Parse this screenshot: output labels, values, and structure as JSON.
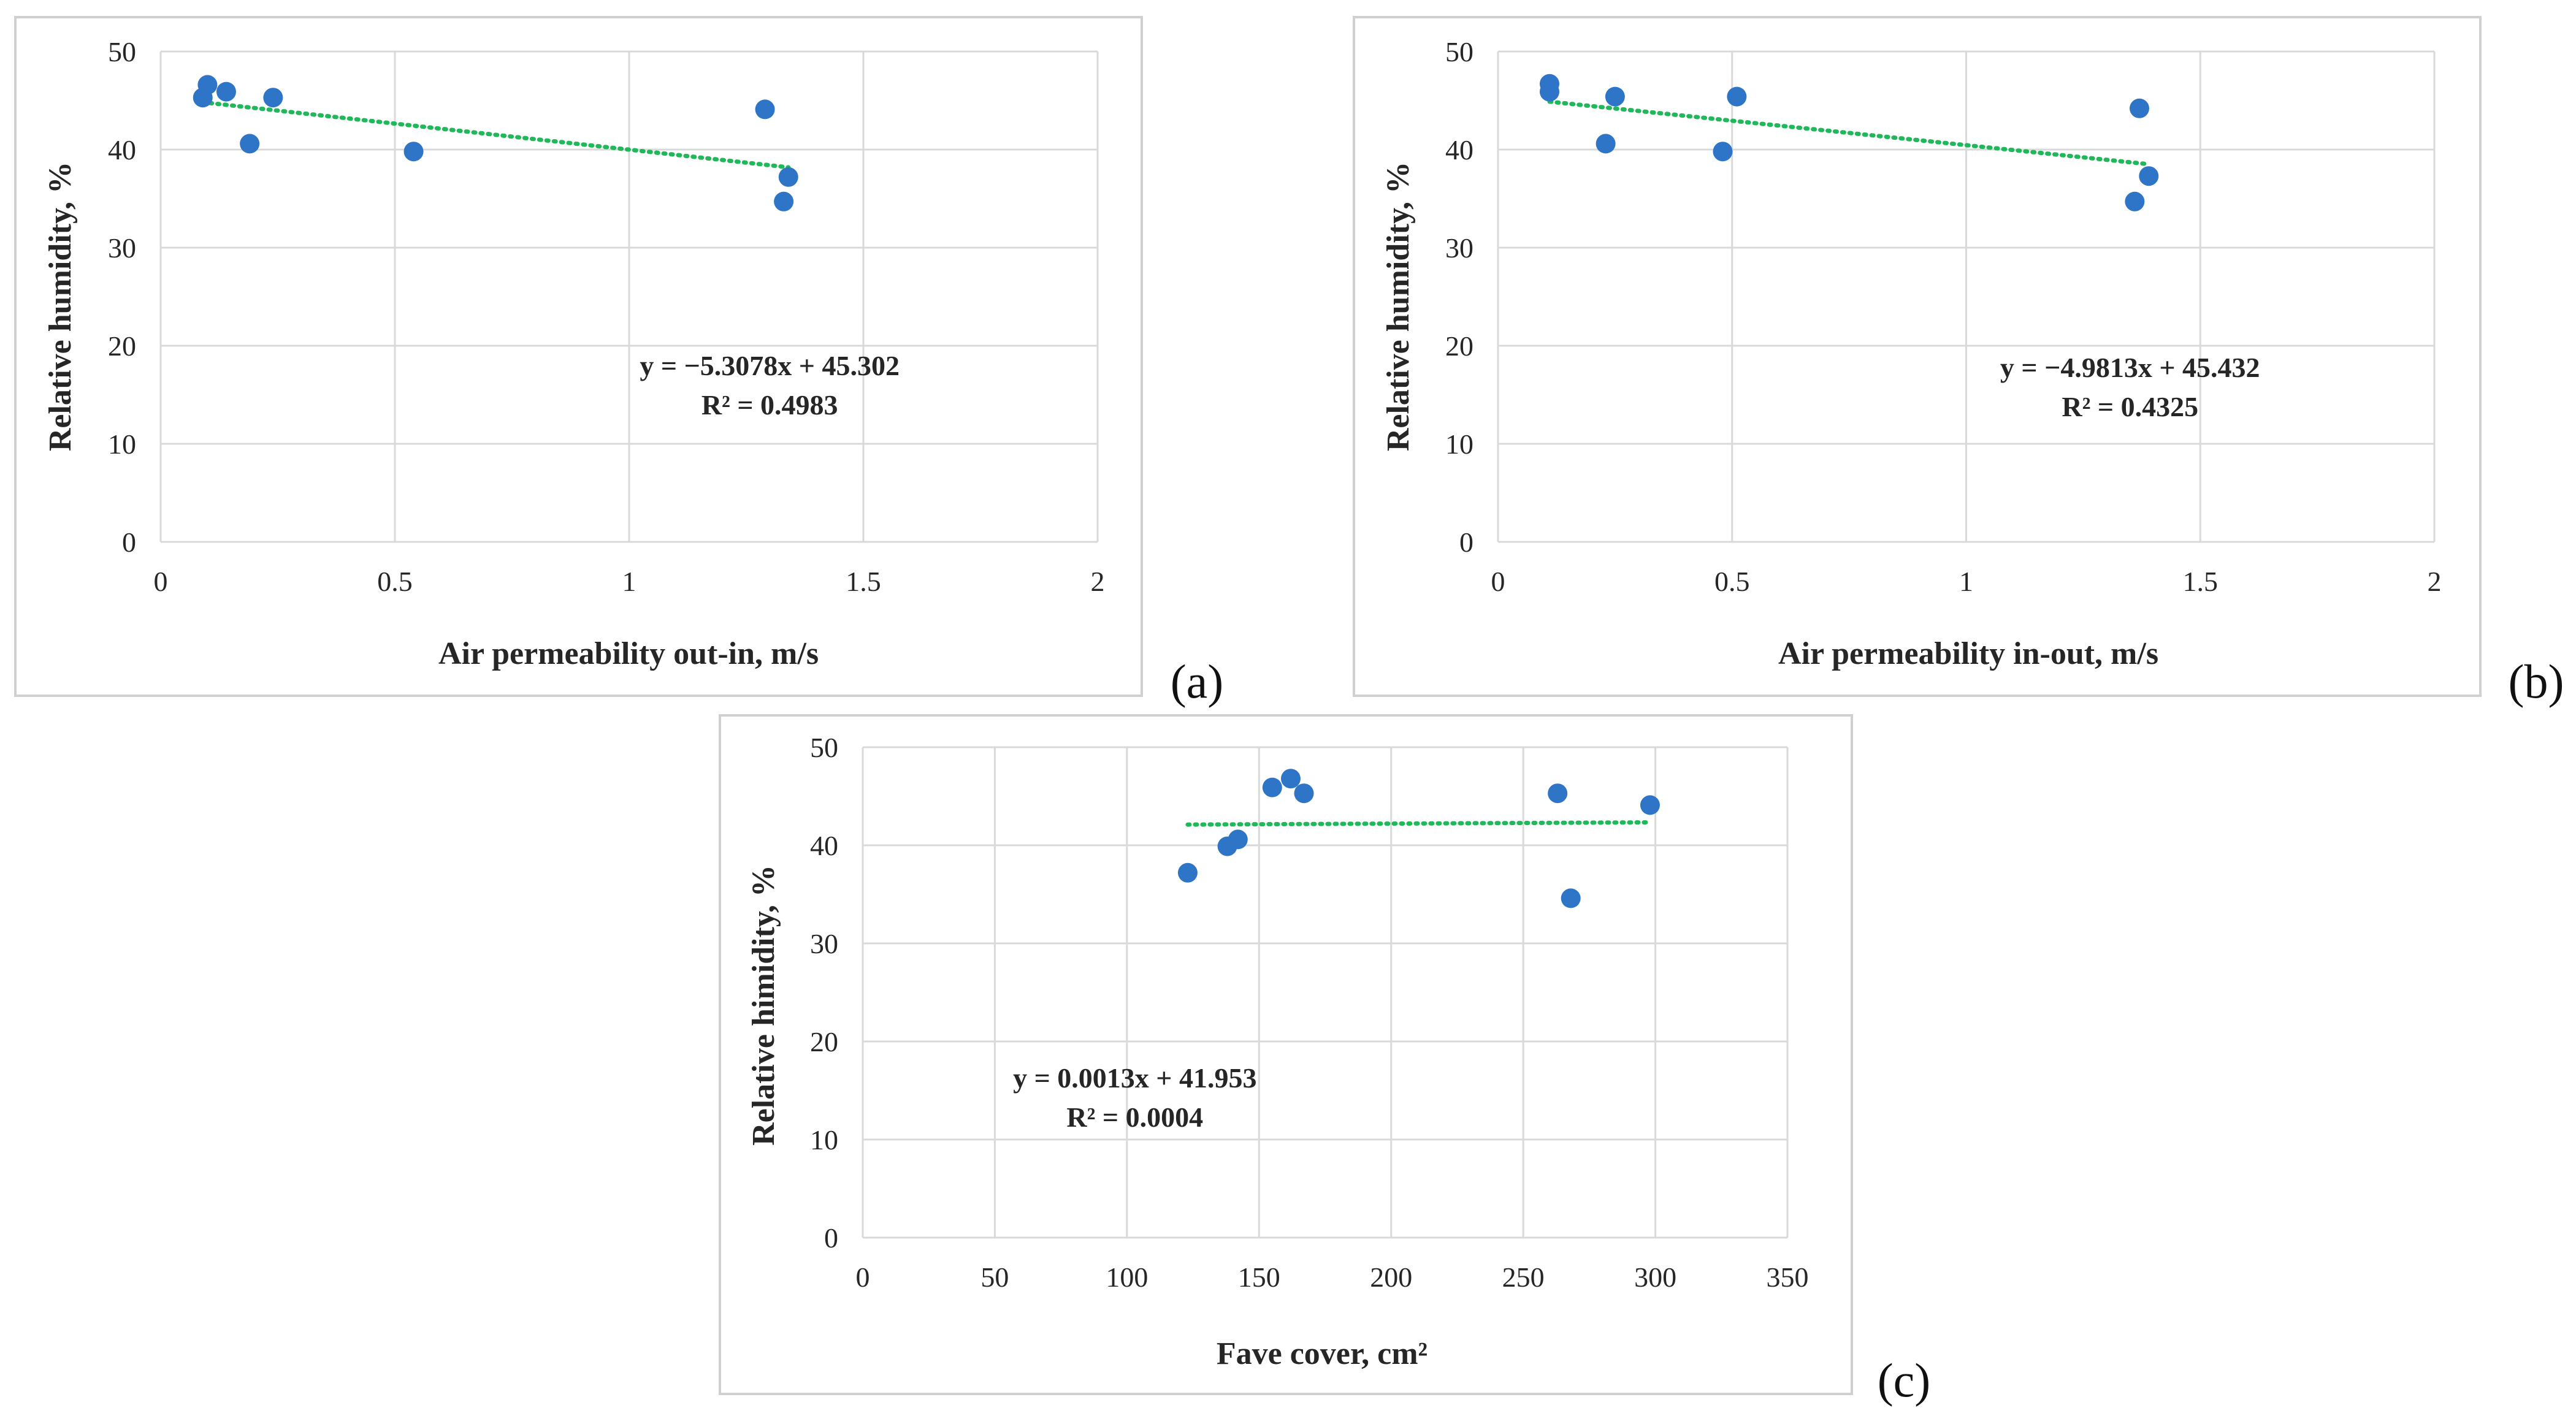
{
  "chart_data": [
    {
      "type": "scatter",
      "panel_label": "(a)",
      "xlabel": "Air permeability out-in, m/s",
      "ylabel": "Relative humidity, %",
      "xlim": [
        0,
        2
      ],
      "ylim": [
        0,
        50
      ],
      "xticks": [
        0,
        0.5,
        1,
        1.5,
        2
      ],
      "xtick_labels": [
        "0",
        "0.5",
        "1",
        "1.5",
        "2"
      ],
      "yticks": [
        0,
        10,
        20,
        30,
        40,
        50
      ],
      "ytick_labels": [
        "0",
        "10",
        "20",
        "30",
        "40",
        "50"
      ],
      "grid": true,
      "series": [
        {
          "name": "data",
          "x": [
            0.09,
            0.1,
            0.14,
            0.19,
            0.24,
            0.54,
            1.29,
            1.33,
            1.34
          ],
          "y": [
            45.3,
            46.6,
            45.9,
            40.6,
            45.3,
            39.8,
            44.1,
            34.7,
            37.2
          ]
        }
      ],
      "trendline": {
        "slope": -5.3078,
        "intercept": 45.302,
        "x_range": [
          0.09,
          1.34
        ],
        "style": "dotted"
      },
      "equation": "y = −5.3078x + 45.302",
      "r2_label": "R² = 0.4983",
      "annotation_anchor": [
        1.3,
        17
      ]
    },
    {
      "type": "scatter",
      "panel_label": "(b)",
      "xlabel": "Air permeability in-out, m/s",
      "ylabel": "Relative humidity, %",
      "xlim": [
        0,
        2
      ],
      "ylim": [
        0,
        50
      ],
      "xticks": [
        0,
        0.5,
        1,
        1.5,
        2
      ],
      "xtick_labels": [
        "0",
        "0.5",
        "1",
        "1.5",
        "2"
      ],
      "yticks": [
        0,
        10,
        20,
        30,
        40,
        50
      ],
      "ytick_labels": [
        "0",
        "10",
        "20",
        "30",
        "40",
        "50"
      ],
      "grid": true,
      "series": [
        {
          "name": "data",
          "x": [
            0.11,
            0.11,
            0.23,
            0.25,
            0.48,
            0.51,
            1.36,
            1.37,
            1.39
          ],
          "y": [
            46.7,
            45.9,
            40.6,
            45.4,
            39.8,
            45.4,
            34.7,
            44.2,
            37.3
          ]
        }
      ],
      "trendline": {
        "slope": -4.9813,
        "intercept": 45.432,
        "x_range": [
          0.11,
          1.39
        ],
        "style": "dotted"
      },
      "equation": "y = −4.9813x + 45.432",
      "r2_label": "R² = 0.4325",
      "annotation_anchor": [
        1.35,
        16.8
      ]
    },
    {
      "type": "scatter",
      "panel_label": "(c)",
      "xlabel": "Fave cover, cm²",
      "ylabel": "Relative himidity, %",
      "xlim": [
        0,
        350
      ],
      "ylim": [
        0,
        50
      ],
      "xticks": [
        0,
        50,
        100,
        150,
        200,
        250,
        300,
        350
      ],
      "xtick_labels": [
        "0",
        "50",
        "100",
        "150",
        "200",
        "250",
        "300",
        "350"
      ],
      "yticks": [
        0,
        10,
        20,
        30,
        40,
        50
      ],
      "ytick_labels": [
        "0",
        "10",
        "20",
        "30",
        "40",
        "50"
      ],
      "grid": true,
      "series": [
        {
          "name": "data",
          "x": [
            123,
            138,
            142,
            155,
            162,
            167,
            263,
            268,
            298
          ],
          "y": [
            37.2,
            39.9,
            40.6,
            45.9,
            46.8,
            45.3,
            45.3,
            34.6,
            44.1
          ]
        }
      ],
      "trendline": {
        "slope": 0.0013,
        "intercept": 41.953,
        "x_range": [
          123,
          298
        ],
        "style": "dotted"
      },
      "equation": "y = 0.0013x + 41.953",
      "r2_label": "R² = 0.0004",
      "annotation_anchor": [
        103,
        15.3
      ]
    }
  ],
  "colors": {
    "point": "#2e75c7",
    "trendline": "#20b85a",
    "grid": "#d9d9d9",
    "frame": "#d0d0d0",
    "text": "#262626"
  }
}
